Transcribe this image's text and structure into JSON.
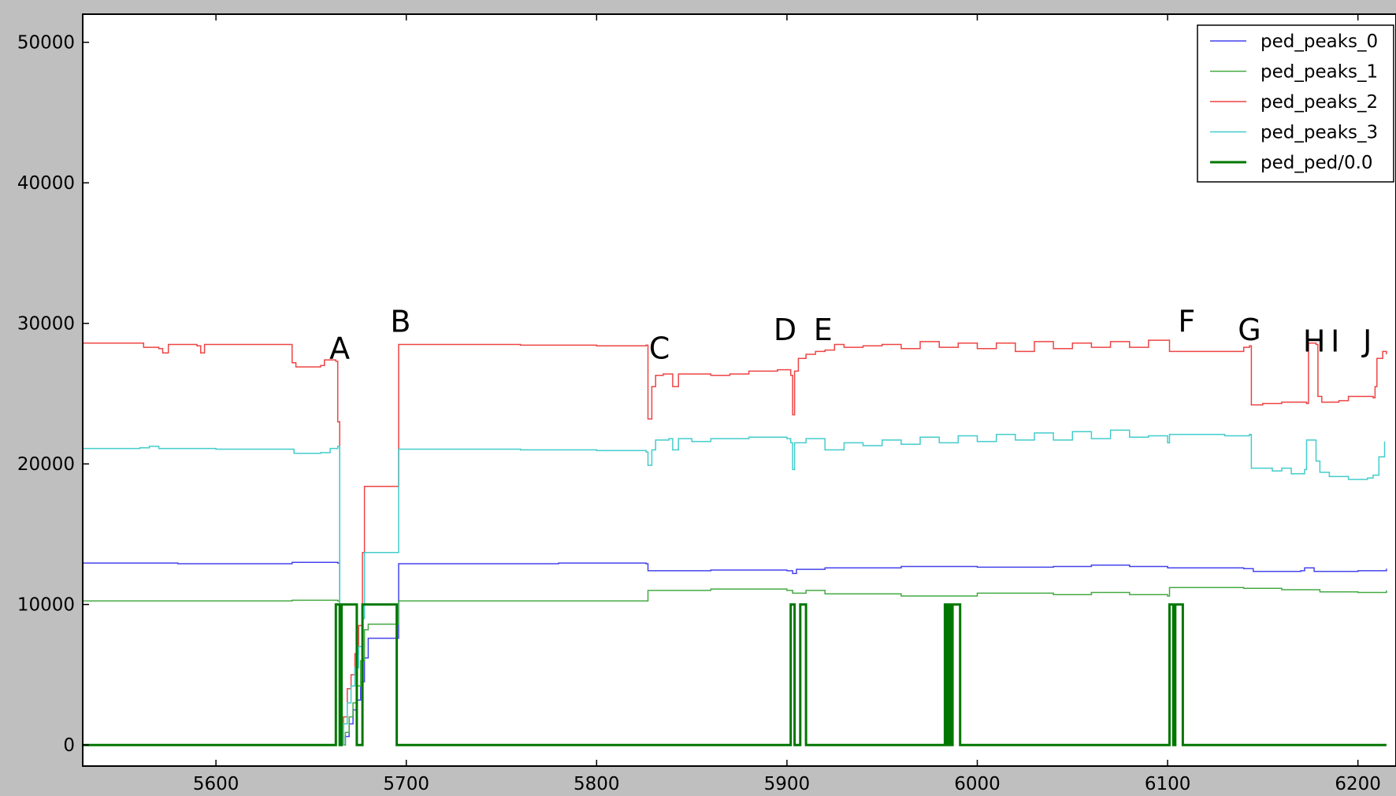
{
  "chart_data": {
    "type": "line",
    "title": "",
    "xlabel": "",
    "ylabel": "",
    "xlim": [
      5530,
      6220
    ],
    "ylim": [
      -1500,
      52000
    ],
    "x_ticks": [
      5600,
      5700,
      5800,
      5900,
      6000,
      6100,
      6200
    ],
    "y_ticks": [
      0,
      10000,
      20000,
      30000,
      40000,
      50000
    ],
    "legend_position": "top-right",
    "grid": false,
    "series": [
      {
        "name": "ped_peaks_0",
        "color": "#4444ee",
        "width": 1.5,
        "step": true,
        "points": [
          [
            5530,
            12950
          ],
          [
            5580,
            12900
          ],
          [
            5640,
            13000
          ],
          [
            5664,
            12950
          ],
          [
            5665,
            0
          ],
          [
            5668,
            600
          ],
          [
            5670,
            1500
          ],
          [
            5672,
            2500
          ],
          [
            5674,
            3200
          ],
          [
            5676,
            4500
          ],
          [
            5678,
            6200
          ],
          [
            5680,
            7600
          ],
          [
            5695,
            7600
          ],
          [
            5696,
            12900
          ],
          [
            5780,
            12950
          ],
          [
            5826,
            12900
          ],
          [
            5827,
            12400
          ],
          [
            5860,
            12450
          ],
          [
            5900,
            12400
          ],
          [
            5903,
            12200
          ],
          [
            5905,
            12500
          ],
          [
            5920,
            12600
          ],
          [
            5960,
            12700
          ],
          [
            6000,
            12650
          ],
          [
            6040,
            12700
          ],
          [
            6060,
            12800
          ],
          [
            6080,
            12700
          ],
          [
            6100,
            12600
          ],
          [
            6140,
            12550
          ],
          [
            6145,
            12350
          ],
          [
            6170,
            12400
          ],
          [
            6172,
            12600
          ],
          [
            6177,
            12350
          ],
          [
            6200,
            12400
          ],
          [
            6215,
            12550
          ]
        ]
      },
      {
        "name": "ped_peaks_1",
        "color": "#44aa44",
        "width": 1.5,
        "step": true,
        "points": [
          [
            5530,
            10250
          ],
          [
            5600,
            10250
          ],
          [
            5640,
            10300
          ],
          [
            5664,
            10250
          ],
          [
            5665,
            0
          ],
          [
            5668,
            900
          ],
          [
            5670,
            2000
          ],
          [
            5672,
            3000
          ],
          [
            5674,
            4200
          ],
          [
            5676,
            6000
          ],
          [
            5678,
            8200
          ],
          [
            5680,
            8600
          ],
          [
            5695,
            8600
          ],
          [
            5696,
            10250
          ],
          [
            5780,
            10250
          ],
          [
            5826,
            10250
          ],
          [
            5827,
            11000
          ],
          [
            5860,
            11100
          ],
          [
            5900,
            11000
          ],
          [
            5903,
            10800
          ],
          [
            5910,
            11000
          ],
          [
            5920,
            10750
          ],
          [
            5960,
            10600
          ],
          [
            6000,
            10800
          ],
          [
            6040,
            10700
          ],
          [
            6060,
            10850
          ],
          [
            6080,
            10700
          ],
          [
            6100,
            10600
          ],
          [
            6101,
            11200
          ],
          [
            6140,
            11150
          ],
          [
            6160,
            11050
          ],
          [
            6180,
            10900
          ],
          [
            6200,
            10850
          ],
          [
            6215,
            11000
          ]
        ]
      },
      {
        "name": "ped_peaks_2",
        "color": "#ee4444",
        "width": 1.5,
        "step": true,
        "points": [
          [
            5530,
            28600
          ],
          [
            5560,
            28600
          ],
          [
            5562,
            28300
          ],
          [
            5570,
            28200
          ],
          [
            5572,
            27900
          ],
          [
            5575,
            28500
          ],
          [
            5590,
            28400
          ],
          [
            5592,
            27900
          ],
          [
            5594,
            28500
          ],
          [
            5610,
            28500
          ],
          [
            5638,
            28500
          ],
          [
            5640,
            27200
          ],
          [
            5642,
            26900
          ],
          [
            5655,
            27000
          ],
          [
            5657,
            27400
          ],
          [
            5663,
            27300
          ],
          [
            5664,
            23000
          ],
          [
            5665,
            0
          ],
          [
            5667,
            2000
          ],
          [
            5669,
            4000
          ],
          [
            5671,
            5000
          ],
          [
            5673,
            6500
          ],
          [
            5675,
            8500
          ],
          [
            5677,
            13700
          ],
          [
            5678,
            18400
          ],
          [
            5695,
            18400
          ],
          [
            5696,
            28500
          ],
          [
            5720,
            28500
          ],
          [
            5760,
            28450
          ],
          [
            5800,
            28400
          ],
          [
            5826,
            28450
          ],
          [
            5827,
            23200
          ],
          [
            5829,
            25500
          ],
          [
            5831,
            26300
          ],
          [
            5835,
            26400
          ],
          [
            5840,
            25500
          ],
          [
            5843,
            26400
          ],
          [
            5860,
            26300
          ],
          [
            5870,
            26400
          ],
          [
            5880,
            26600
          ],
          [
            5895,
            26700
          ],
          [
            5902,
            26300
          ],
          [
            5903,
            23500
          ],
          [
            5904,
            26600
          ],
          [
            5906,
            27500
          ],
          [
            5910,
            27800
          ],
          [
            5915,
            28000
          ],
          [
            5920,
            28100
          ],
          [
            5925,
            28500
          ],
          [
            5930,
            28300
          ],
          [
            5940,
            28400
          ],
          [
            5950,
            28500
          ],
          [
            5960,
            28200
          ],
          [
            5970,
            28700
          ],
          [
            5980,
            28300
          ],
          [
            5990,
            28600
          ],
          [
            6000,
            28200
          ],
          [
            6010,
            28600
          ],
          [
            6020,
            28000
          ],
          [
            6030,
            28700
          ],
          [
            6040,
            28200
          ],
          [
            6050,
            28600
          ],
          [
            6060,
            28300
          ],
          [
            6070,
            28700
          ],
          [
            6080,
            28300
          ],
          [
            6090,
            28800
          ],
          [
            6100,
            28800
          ],
          [
            6101,
            28000
          ],
          [
            6120,
            28000
          ],
          [
            6140,
            28300
          ],
          [
            6143,
            28400
          ],
          [
            6144,
            24200
          ],
          [
            6150,
            24300
          ],
          [
            6160,
            24400
          ],
          [
            6173,
            24300
          ],
          [
            6174,
            28600
          ],
          [
            6178,
            28500
          ],
          [
            6179,
            24800
          ],
          [
            6181,
            24400
          ],
          [
            6190,
            24500
          ],
          [
            6195,
            24800
          ],
          [
            6208,
            24700
          ],
          [
            6209,
            25500
          ],
          [
            6210,
            27500
          ],
          [
            6213,
            28000
          ],
          [
            6215,
            27800
          ]
        ]
      },
      {
        "name": "ped_peaks_3",
        "color": "#44cccc",
        "width": 1.5,
        "step": true,
        "points": [
          [
            5530,
            21100
          ],
          [
            5560,
            21150
          ],
          [
            5565,
            21250
          ],
          [
            5570,
            21100
          ],
          [
            5600,
            21050
          ],
          [
            5640,
            21050
          ],
          [
            5641,
            20750
          ],
          [
            5655,
            20800
          ],
          [
            5660,
            21100
          ],
          [
            5664,
            21250
          ],
          [
            5665,
            0
          ],
          [
            5667,
            1500
          ],
          [
            5669,
            3000
          ],
          [
            5671,
            4200
          ],
          [
            5673,
            5500
          ],
          [
            5675,
            7000
          ],
          [
            5677,
            9000
          ],
          [
            5678,
            13700
          ],
          [
            5695,
            13700
          ],
          [
            5696,
            21050
          ],
          [
            5760,
            21000
          ],
          [
            5800,
            20950
          ],
          [
            5826,
            20850
          ],
          [
            5827,
            19900
          ],
          [
            5829,
            21000
          ],
          [
            5831,
            21700
          ],
          [
            5838,
            21800
          ],
          [
            5840,
            21000
          ],
          [
            5843,
            21800
          ],
          [
            5850,
            21600
          ],
          [
            5860,
            21800
          ],
          [
            5880,
            21900
          ],
          [
            5900,
            21800
          ],
          [
            5902,
            21500
          ],
          [
            5903,
            19600
          ],
          [
            5904,
            21500
          ],
          [
            5910,
            21800
          ],
          [
            5920,
            21000
          ],
          [
            5930,
            21500
          ],
          [
            5940,
            21300
          ],
          [
            5950,
            21700
          ],
          [
            5960,
            21400
          ],
          [
            5970,
            21900
          ],
          [
            5980,
            21500
          ],
          [
            5990,
            22000
          ],
          [
            6000,
            21600
          ],
          [
            6010,
            22100
          ],
          [
            6020,
            21700
          ],
          [
            6030,
            22200
          ],
          [
            6040,
            21700
          ],
          [
            6050,
            22300
          ],
          [
            6060,
            21800
          ],
          [
            6070,
            22400
          ],
          [
            6080,
            21900
          ],
          [
            6090,
            22000
          ],
          [
            6100,
            21500
          ],
          [
            6101,
            22100
          ],
          [
            6130,
            22000
          ],
          [
            6143,
            22100
          ],
          [
            6144,
            19700
          ],
          [
            6155,
            19500
          ],
          [
            6160,
            19700
          ],
          [
            6165,
            19300
          ],
          [
            6172,
            19600
          ],
          [
            6173,
            21700
          ],
          [
            6177,
            21700
          ],
          [
            6178,
            20200
          ],
          [
            6180,
            19400
          ],
          [
            6185,
            19100
          ],
          [
            6195,
            18900
          ],
          [
            6205,
            19000
          ],
          [
            6208,
            19200
          ],
          [
            6211,
            20500
          ],
          [
            6214,
            21600
          ]
        ]
      },
      {
        "name": "ped_ped/0.0",
        "color": "#007700",
        "width": 3,
        "step": true,
        "points": [
          [
            5530,
            0
          ],
          [
            5663,
            0
          ],
          [
            5663,
            10000
          ],
          [
            5665,
            10000
          ],
          [
            5665,
            0
          ],
          [
            5666,
            0
          ],
          [
            5666,
            10000
          ],
          [
            5674,
            10000
          ],
          [
            5674,
            0
          ],
          [
            5677,
            0
          ],
          [
            5677,
            10000
          ],
          [
            5695,
            10000
          ],
          [
            5695,
            0
          ],
          [
            5902,
            0
          ],
          [
            5902,
            10000
          ],
          [
            5904,
            10000
          ],
          [
            5904,
            0
          ],
          [
            5907,
            0
          ],
          [
            5907,
            10000
          ],
          [
            5910,
            10000
          ],
          [
            5910,
            0
          ],
          [
            5983,
            0
          ],
          [
            5983,
            10000
          ],
          [
            5984,
            10000
          ],
          [
            5984,
            0
          ],
          [
            5985,
            0
          ],
          [
            5985,
            10000
          ],
          [
            5986,
            10000
          ],
          [
            5986,
            0
          ],
          [
            5987,
            0
          ],
          [
            5987,
            10000
          ],
          [
            5991,
            10000
          ],
          [
            5991,
            0
          ],
          [
            6101,
            0
          ],
          [
            6101,
            10000
          ],
          [
            6103,
            10000
          ],
          [
            6103,
            0
          ],
          [
            6104,
            0
          ],
          [
            6104,
            10000
          ],
          [
            6108,
            10000
          ],
          [
            6108,
            0
          ],
          [
            6215,
            0
          ]
        ]
      }
    ],
    "annotations": [
      {
        "text": "A",
        "x": 5665,
        "y": 27500
      },
      {
        "text": "B",
        "x": 5697,
        "y": 29400
      },
      {
        "text": "C",
        "x": 5833,
        "y": 27500
      },
      {
        "text": "D",
        "x": 5899,
        "y": 28800
      },
      {
        "text": "E",
        "x": 5919,
        "y": 28800
      },
      {
        "text": "F",
        "x": 6110,
        "y": 29400
      },
      {
        "text": "G",
        "x": 6143,
        "y": 28800
      },
      {
        "text": "H",
        "x": 6177,
        "y": 28000
      },
      {
        "text": "I",
        "x": 6188,
        "y": 28000
      },
      {
        "text": "J",
        "x": 6205,
        "y": 28000
      }
    ]
  }
}
